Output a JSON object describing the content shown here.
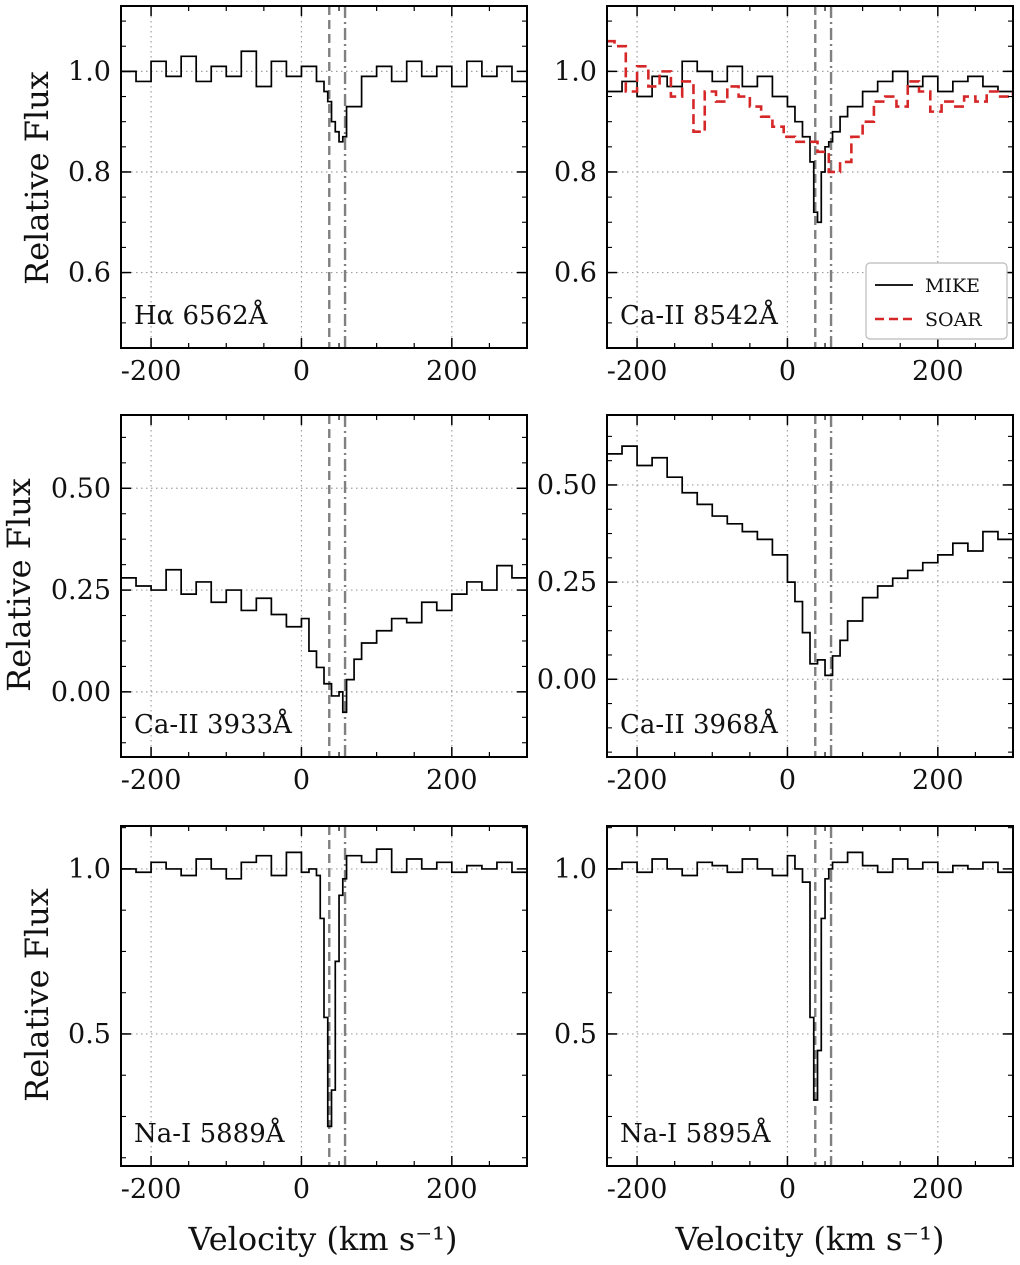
{
  "figure": {
    "y_axis_title": "Relative Flux",
    "x_axis_title": "Velocity (km s⁻¹)"
  },
  "legend": {
    "items": [
      {
        "label": "MIKE",
        "color": "#000000",
        "style": "solid"
      },
      {
        "label": "SOAR",
        "color": "#d62728",
        "style": "dashed"
      }
    ]
  },
  "colors": {
    "mike": "#000000",
    "soar": "#d62728",
    "ref_lines": "#808080",
    "grid": "#a0a0a0"
  },
  "chart_data": [
    {
      "type": "line",
      "label": "Hα 6562Å",
      "xlabel": "",
      "ylabel": "Relative Flux",
      "xlim": [
        -240,
        300
      ],
      "ylim": [
        0.45,
        1.13
      ],
      "xticks": [
        -200,
        0,
        200
      ],
      "xtick_labels": [
        "-200",
        "0",
        "200"
      ],
      "yticks": [
        0.6,
        0.8,
        1.0
      ],
      "ytick_labels": [
        "0.6",
        "0.8",
        "1.0"
      ],
      "ref_lines": [
        {
          "x": 37,
          "style": "dashed"
        },
        {
          "x": 58,
          "style": "dashdot"
        }
      ],
      "series": [
        {
          "name": "MIKE",
          "style": "step",
          "x": [
            -240,
            -220,
            -200,
            -180,
            -160,
            -140,
            -120,
            -100,
            -80,
            -60,
            -40,
            -20,
            0,
            20,
            30,
            35,
            40,
            45,
            50,
            55,
            60,
            80,
            100,
            120,
            140,
            160,
            180,
            200,
            220,
            240,
            260,
            280,
            300
          ],
          "y": [
            1.0,
            0.98,
            1.02,
            0.99,
            1.03,
            0.98,
            1.01,
            0.99,
            1.04,
            0.97,
            1.02,
            0.99,
            1.01,
            0.98,
            0.96,
            0.94,
            0.9,
            0.88,
            0.86,
            0.87,
            0.93,
            0.99,
            1.01,
            0.98,
            1.02,
            0.99,
            1.01,
            0.97,
            1.02,
            0.99,
            1.01,
            0.98,
            1.0
          ]
        }
      ]
    },
    {
      "type": "line",
      "label": "Ca-II 8542Å",
      "xlabel": "",
      "ylabel": "",
      "xlim": [
        -240,
        300
      ],
      "ylim": [
        0.45,
        1.13
      ],
      "xticks": [
        -200,
        0,
        200
      ],
      "xtick_labels": [
        "-200",
        "0",
        "200"
      ],
      "yticks": [
        0.6,
        0.8,
        1.0
      ],
      "ytick_labels": [
        "0.6",
        "0.8",
        "1.0"
      ],
      "ref_lines": [
        {
          "x": 37,
          "style": "dashed"
        },
        {
          "x": 58,
          "style": "dashdot"
        }
      ],
      "series": [
        {
          "name": "MIKE",
          "style": "step",
          "x": [
            -240,
            -220,
            -200,
            -180,
            -160,
            -140,
            -120,
            -100,
            -80,
            -60,
            -40,
            -20,
            0,
            10,
            20,
            30,
            35,
            40,
            45,
            50,
            55,
            60,
            70,
            80,
            100,
            120,
            140,
            160,
            180,
            200,
            220,
            240,
            260,
            280,
            300
          ],
          "y": [
            0.96,
            0.98,
            0.95,
            0.99,
            0.97,
            1.02,
            1.0,
            0.98,
            1.01,
            0.97,
            0.99,
            0.95,
            0.93,
            0.9,
            0.87,
            0.82,
            0.72,
            0.7,
            0.8,
            0.85,
            0.86,
            0.88,
            0.91,
            0.93,
            0.96,
            0.98,
            1.0,
            0.97,
            0.99,
            0.96,
            0.98,
            0.99,
            0.97,
            0.96,
            0.95
          ]
        },
        {
          "name": "SOAR",
          "style": "step",
          "x": [
            -240,
            -230,
            -215,
            -200,
            -185,
            -170,
            -155,
            -140,
            -125,
            -110,
            -95,
            -80,
            -65,
            -50,
            -35,
            -20,
            -5,
            10,
            25,
            40,
            55,
            70,
            85,
            100,
            115,
            130,
            145,
            160,
            175,
            190,
            205,
            220,
            235,
            250,
            265,
            280,
            300
          ],
          "y": [
            1.06,
            1.05,
            0.96,
            1.01,
            0.97,
            1.0,
            0.95,
            0.98,
            0.88,
            0.96,
            0.94,
            0.97,
            0.95,
            0.93,
            0.91,
            0.89,
            0.87,
            0.86,
            0.86,
            0.84,
            0.8,
            0.82,
            0.87,
            0.9,
            0.94,
            0.95,
            0.93,
            0.98,
            0.96,
            0.92,
            0.94,
            0.93,
            0.95,
            0.94,
            0.96,
            0.95,
            0.96
          ]
        }
      ]
    },
    {
      "type": "line",
      "label": "Ca-II 3933Å",
      "xlabel": "",
      "ylabel": "Relative Flux",
      "xlim": [
        -240,
        300
      ],
      "ylim": [
        -0.16,
        0.68
      ],
      "xticks": [
        -200,
        0,
        200
      ],
      "xtick_labels": [
        "-200",
        "0",
        "200"
      ],
      "yticks": [
        0.0,
        0.25,
        0.5
      ],
      "ytick_labels": [
        "0.00",
        "0.25",
        "0.50"
      ],
      "ref_lines": [
        {
          "x": 37,
          "style": "dashed"
        },
        {
          "x": 58,
          "style": "dashdot"
        }
      ],
      "series": [
        {
          "name": "MIKE",
          "style": "step",
          "x": [
            -240,
            -220,
            -200,
            -180,
            -160,
            -140,
            -120,
            -100,
            -80,
            -60,
            -40,
            -20,
            0,
            10,
            20,
            30,
            40,
            50,
            55,
            60,
            70,
            80,
            100,
            120,
            140,
            160,
            180,
            200,
            220,
            240,
            260,
            280,
            300
          ],
          "y": [
            0.28,
            0.26,
            0.25,
            0.3,
            0.24,
            0.27,
            0.22,
            0.25,
            0.2,
            0.23,
            0.19,
            0.16,
            0.18,
            0.1,
            0.06,
            0.02,
            -0.01,
            0.0,
            -0.05,
            0.03,
            0.08,
            0.12,
            0.15,
            0.18,
            0.17,
            0.22,
            0.2,
            0.24,
            0.27,
            0.25,
            0.31,
            0.28,
            0.3
          ]
        }
      ]
    },
    {
      "type": "line",
      "label": "Ca-II 3968Å",
      "xlabel": "",
      "ylabel": "",
      "xlim": [
        -240,
        300
      ],
      "ylim": [
        -0.2,
        0.68
      ],
      "xticks": [
        -200,
        0,
        200
      ],
      "xtick_labels": [
        "-200",
        "0",
        "200"
      ],
      "yticks": [
        0.0,
        0.25,
        0.5
      ],
      "ytick_labels": [
        "0.00",
        "0.25",
        "0.50"
      ],
      "ref_lines": [
        {
          "x": 37,
          "style": "dashed"
        },
        {
          "x": 58,
          "style": "dashdot"
        }
      ],
      "series": [
        {
          "name": "MIKE",
          "style": "step",
          "x": [
            -240,
            -220,
            -200,
            -180,
            -160,
            -140,
            -120,
            -100,
            -80,
            -60,
            -40,
            -20,
            0,
            10,
            20,
            30,
            40,
            50,
            60,
            70,
            80,
            100,
            120,
            140,
            160,
            180,
            200,
            220,
            240,
            260,
            280,
            300
          ],
          "y": [
            0.58,
            0.6,
            0.55,
            0.57,
            0.52,
            0.48,
            0.45,
            0.42,
            0.4,
            0.38,
            0.36,
            0.32,
            0.25,
            0.2,
            0.12,
            0.04,
            0.05,
            0.01,
            0.06,
            0.1,
            0.15,
            0.21,
            0.24,
            0.26,
            0.28,
            0.3,
            0.32,
            0.35,
            0.33,
            0.38,
            0.36,
            0.35
          ]
        }
      ]
    },
    {
      "type": "line",
      "label": "Na-I 5889Å",
      "xlabel": "Velocity (km s⁻¹)",
      "ylabel": "Relative Flux",
      "xlim": [
        -240,
        300
      ],
      "ylim": [
        0.1,
        1.13
      ],
      "xticks": [
        -200,
        0,
        200
      ],
      "xtick_labels": [
        "-200",
        "0",
        "200"
      ],
      "yticks": [
        0.5,
        1.0
      ],
      "ytick_labels": [
        "0.5",
        "1.0"
      ],
      "ref_lines": [
        {
          "x": 37,
          "style": "dashed"
        },
        {
          "x": 58,
          "style": "dashdot"
        }
      ],
      "series": [
        {
          "name": "MIKE",
          "style": "step",
          "x": [
            -240,
            -220,
            -200,
            -180,
            -160,
            -140,
            -120,
            -100,
            -80,
            -60,
            -40,
            -20,
            0,
            10,
            20,
            25,
            30,
            35,
            40,
            45,
            50,
            55,
            60,
            80,
            100,
            120,
            140,
            160,
            180,
            200,
            220,
            240,
            260,
            280,
            300
          ],
          "y": [
            1.0,
            0.99,
            1.02,
            1.0,
            0.98,
            1.03,
            1.0,
            0.97,
            1.02,
            1.04,
            0.98,
            1.05,
            0.99,
            1.0,
            0.98,
            0.85,
            0.55,
            0.22,
            0.33,
            0.72,
            0.92,
            0.97,
            1.04,
            1.02,
            1.06,
            0.99,
            1.03,
            1.0,
            1.02,
            0.99,
            1.01,
            1.0,
            1.02,
            0.99,
            1.01
          ]
        }
      ]
    },
    {
      "type": "line",
      "label": "Na-I 5895Å",
      "xlabel": "Velocity (km s⁻¹)",
      "ylabel": "",
      "xlim": [
        -240,
        300
      ],
      "ylim": [
        0.1,
        1.13
      ],
      "xticks": [
        -200,
        0,
        200
      ],
      "xtick_labels": [
        "-200",
        "0",
        "200"
      ],
      "yticks": [
        0.5,
        1.0
      ],
      "ytick_labels": [
        "0.5",
        "1.0"
      ],
      "ref_lines": [
        {
          "x": 37,
          "style": "dashed"
        },
        {
          "x": 58,
          "style": "dashdot"
        }
      ],
      "series": [
        {
          "name": "MIKE",
          "style": "step",
          "x": [
            -240,
            -220,
            -200,
            -180,
            -160,
            -140,
            -120,
            -100,
            -80,
            -60,
            -40,
            -20,
            0,
            10,
            20,
            30,
            35,
            40,
            45,
            50,
            55,
            60,
            80,
            100,
            120,
            140,
            160,
            180,
            200,
            220,
            240,
            260,
            280,
            300
          ],
          "y": [
            1.0,
            1.02,
            0.99,
            1.03,
            1.0,
            0.98,
            1.02,
            1.01,
            0.99,
            1.03,
            1.0,
            0.98,
            1.04,
            1.0,
            0.96,
            0.55,
            0.3,
            0.45,
            0.85,
            0.97,
            1.0,
            1.02,
            1.05,
            1.01,
            0.99,
            1.03,
            1.0,
            1.02,
            0.99,
            1.01,
            1.0,
            1.02,
            0.99,
            1.0
          ]
        }
      ]
    }
  ]
}
